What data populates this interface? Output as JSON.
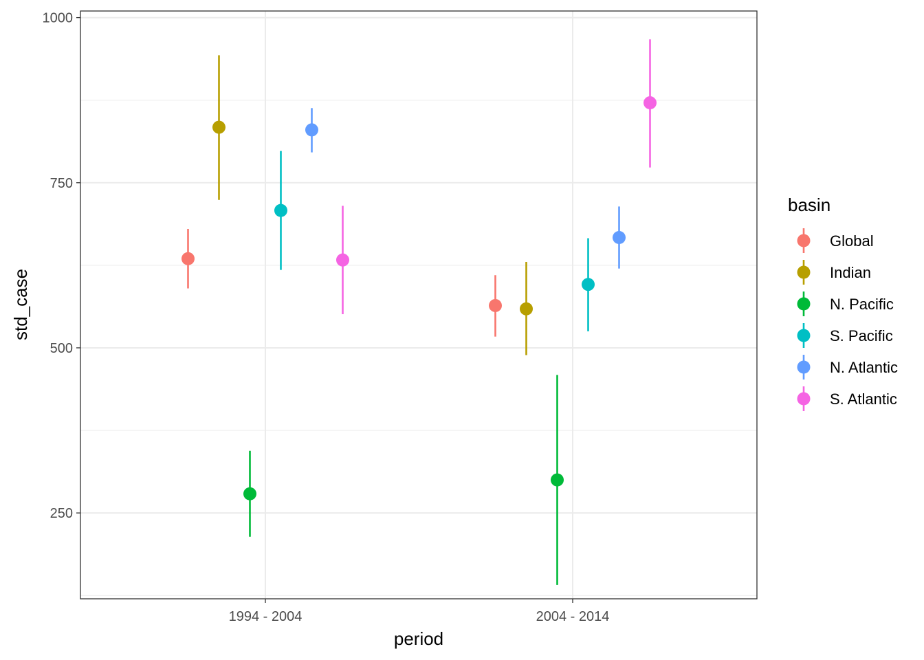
{
  "chart_data": {
    "type": "scatter",
    "subtype": "pointrange",
    "xlabel": "period",
    "ylabel": "std_case",
    "categories": [
      "1994 - 2004",
      "2004 - 2014"
    ],
    "ylim": [
      120,
      1010
    ],
    "yticks": [
      250,
      500,
      750,
      1000
    ],
    "grid": true,
    "legend": {
      "title": "basin",
      "position": "right"
    },
    "series": [
      {
        "name": "Global",
        "color": "#F8766D",
        "points": [
          {
            "x": "1994 - 2004",
            "y": 635,
            "ymin": 590,
            "ymax": 680
          },
          {
            "x": "2004 - 2014",
            "y": 564,
            "ymin": 517,
            "ymax": 610
          }
        ]
      },
      {
        "name": "Indian",
        "color": "#B79F00",
        "points": [
          {
            "x": "1994 - 2004",
            "y": 834,
            "ymin": 724,
            "ymax": 943
          },
          {
            "x": "2004 - 2014",
            "y": 559,
            "ymin": 489,
            "ymax": 630
          }
        ]
      },
      {
        "name": "N. Pacific",
        "color": "#00BA38",
        "points": [
          {
            "x": "1994 - 2004",
            "y": 279,
            "ymin": 214,
            "ymax": 344
          },
          {
            "x": "2004 - 2014",
            "y": 300,
            "ymin": 141,
            "ymax": 459
          }
        ]
      },
      {
        "name": "S. Pacific",
        "color": "#00BFC4",
        "points": [
          {
            "x": "1994 - 2004",
            "y": 708,
            "ymin": 618,
            "ymax": 798
          },
          {
            "x": "2004 - 2014",
            "y": 596,
            "ymin": 525,
            "ymax": 666
          }
        ]
      },
      {
        "name": "N. Atlantic",
        "color": "#619CFF",
        "points": [
          {
            "x": "1994 - 2004",
            "y": 830,
            "ymin": 796,
            "ymax": 863
          },
          {
            "x": "2004 - 2014",
            "y": 667,
            "ymin": 620,
            "ymax": 714
          }
        ]
      },
      {
        "name": "S. Atlantic",
        "color": "#F564E3",
        "points": [
          {
            "x": "1994 - 2004",
            "y": 633,
            "ymin": 551,
            "ymax": 715
          },
          {
            "x": "2004 - 2014",
            "y": 871,
            "ymin": 773,
            "ymax": 967
          }
        ]
      }
    ]
  }
}
